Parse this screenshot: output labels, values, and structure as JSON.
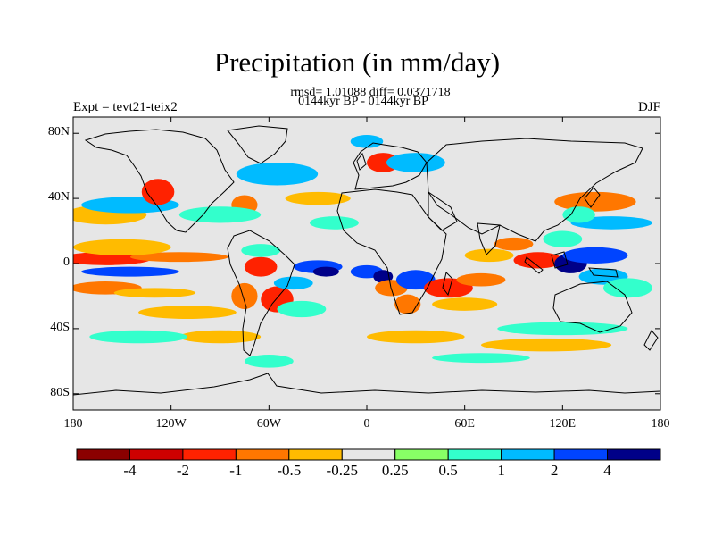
{
  "title": "Precipitation (in mm/day)",
  "stats_line": "rmsd= 1.01088 diff= 0.0371718",
  "period_line": "0144kyr BP - 0144kyr BP",
  "experiment_label": "Expt = tevt21-teix2",
  "season_label": "DJF",
  "map": {
    "projection": "cylindrical-equidistant",
    "lon_range": [
      -180,
      180
    ],
    "lat_range": [
      -90,
      90
    ],
    "background_color": "#e6e6e6",
    "coastline_color": "#000000",
    "y_ticks": [
      {
        "lat": 80,
        "label": "80N"
      },
      {
        "lat": 40,
        "label": "40N"
      },
      {
        "lat": 0,
        "label": "0"
      },
      {
        "lat": -40,
        "label": "40S"
      },
      {
        "lat": -80,
        "label": "80S"
      }
    ],
    "x_ticks": [
      {
        "lon": -180,
        "label": "180"
      },
      {
        "lon": -120,
        "label": "120W"
      },
      {
        "lon": -60,
        "label": "60W"
      },
      {
        "lon": 0,
        "label": "0"
      },
      {
        "lon": 60,
        "label": "60E"
      },
      {
        "lon": 120,
        "label": "120E"
      },
      {
        "lon": 180,
        "label": "180"
      }
    ],
    "anomaly_regions": [
      {
        "lon": -160,
        "lat": 3,
        "rlon": 28,
        "rlat": 4,
        "level": -2
      },
      {
        "lon": -115,
        "lat": 4,
        "rlon": 30,
        "rlat": 3,
        "level": -1
      },
      {
        "lon": -150,
        "lat": 10,
        "rlon": 30,
        "rlat": 5,
        "level": -0.5
      },
      {
        "lon": -145,
        "lat": -5,
        "rlon": 30,
        "rlat": 3,
        "level": 2
      },
      {
        "lon": -160,
        "lat": -15,
        "rlon": 22,
        "rlat": 4,
        "level": -1
      },
      {
        "lon": -130,
        "lat": -18,
        "rlon": 25,
        "rlat": 3,
        "level": -0.5
      },
      {
        "lon": -160,
        "lat": 30,
        "rlon": 25,
        "rlat": 6,
        "level": -0.5
      },
      {
        "lon": -145,
        "lat": 36,
        "rlon": 30,
        "rlat": 5,
        "level": 1
      },
      {
        "lon": -128,
        "lat": 44,
        "rlon": 10,
        "rlat": 8,
        "level": -2
      },
      {
        "lon": -75,
        "lat": 36,
        "rlon": 8,
        "rlat": 6,
        "level": -1
      },
      {
        "lon": -55,
        "lat": 55,
        "rlon": 25,
        "rlat": 7,
        "level": 1
      },
      {
        "lon": -30,
        "lat": 40,
        "rlon": 20,
        "rlat": 4,
        "level": -0.5
      },
      {
        "lon": -20,
        "lat": 25,
        "rlon": 15,
        "rlat": 4,
        "level": 0.5
      },
      {
        "lon": 10,
        "lat": 62,
        "rlon": 10,
        "rlat": 6,
        "level": -2
      },
      {
        "lon": 30,
        "lat": 62,
        "rlon": 18,
        "rlat": 6,
        "level": 1
      },
      {
        "lon": 0,
        "lat": 75,
        "rlon": 10,
        "rlat": 4,
        "level": 1
      },
      {
        "lon": 140,
        "lat": 38,
        "rlon": 25,
        "rlat": 6,
        "level": -1
      },
      {
        "lon": 150,
        "lat": 25,
        "rlon": 25,
        "rlat": 4,
        "level": 1
      },
      {
        "lon": 130,
        "lat": 30,
        "rlon": 10,
        "rlat": 5,
        "level": 0.5
      },
      {
        "lon": 105,
        "lat": 2,
        "rlon": 15,
        "rlat": 5,
        "level": -2
      },
      {
        "lon": 125,
        "lat": 0,
        "rlon": 10,
        "rlat": 6,
        "level": 4
      },
      {
        "lon": 140,
        "lat": 5,
        "rlon": 20,
        "rlat": 5,
        "level": 2
      },
      {
        "lon": 145,
        "lat": -8,
        "rlon": 15,
        "rlat": 5,
        "level": 1
      },
      {
        "lon": 90,
        "lat": 12,
        "rlon": 12,
        "rlat": 4,
        "level": -1
      },
      {
        "lon": 120,
        "lat": 15,
        "rlon": 12,
        "rlat": 5,
        "level": 0.5
      },
      {
        "lon": 75,
        "lat": 5,
        "rlon": 15,
        "rlat": 4,
        "level": -0.5
      },
      {
        "lon": 160,
        "lat": -15,
        "rlon": 15,
        "rlat": 6,
        "level": 0.5
      },
      {
        "lon": -65,
        "lat": -2,
        "rlon": 10,
        "rlat": 6,
        "level": -2
      },
      {
        "lon": -75,
        "lat": -20,
        "rlon": 8,
        "rlat": 8,
        "level": -1
      },
      {
        "lon": -55,
        "lat": -22,
        "rlon": 10,
        "rlat": 8,
        "level": -2
      },
      {
        "lon": -45,
        "lat": -12,
        "rlon": 12,
        "rlat": 4,
        "level": 1
      },
      {
        "lon": -30,
        "lat": -2,
        "rlon": 15,
        "rlat": 4,
        "level": 2
      },
      {
        "lon": -25,
        "lat": -5,
        "rlon": 8,
        "rlat": 3,
        "level": 4
      },
      {
        "lon": -65,
        "lat": 8,
        "rlon": 12,
        "rlat": 4,
        "level": 0.5
      },
      {
        "lon": 0,
        "lat": -5,
        "rlon": 10,
        "rlat": 4,
        "level": 2
      },
      {
        "lon": 10,
        "lat": -8,
        "rlon": 6,
        "rlat": 4,
        "level": 4
      },
      {
        "lon": 15,
        "lat": -15,
        "rlon": 10,
        "rlat": 5,
        "level": -1
      },
      {
        "lon": 30,
        "lat": -10,
        "rlon": 12,
        "rlat": 6,
        "level": 2
      },
      {
        "lon": 25,
        "lat": -25,
        "rlon": 8,
        "rlat": 6,
        "level": -1
      },
      {
        "lon": 50,
        "lat": -15,
        "rlon": 15,
        "rlat": 6,
        "level": -2
      },
      {
        "lon": 70,
        "lat": -10,
        "rlon": 15,
        "rlat": 4,
        "level": -1
      },
      {
        "lon": 60,
        "lat": -25,
        "rlon": 20,
        "rlat": 4,
        "level": -0.5
      },
      {
        "lon": -110,
        "lat": -30,
        "rlon": 30,
        "rlat": 4,
        "level": -0.5
      },
      {
        "lon": -40,
        "lat": -28,
        "rlon": 15,
        "rlat": 5,
        "level": 0.5
      },
      {
        "lon": -90,
        "lat": -45,
        "rlon": 25,
        "rlat": 4,
        "level": -0.5
      },
      {
        "lon": -140,
        "lat": -45,
        "rlon": 30,
        "rlat": 4,
        "level": 0.5
      },
      {
        "lon": 30,
        "lat": -45,
        "rlon": 30,
        "rlat": 4,
        "level": -0.5
      },
      {
        "lon": 110,
        "lat": -50,
        "rlon": 40,
        "rlat": 4,
        "level": -0.5
      },
      {
        "lon": 120,
        "lat": -40,
        "rlon": 40,
        "rlat": 4,
        "level": 0.5
      },
      {
        "lon": -60,
        "lat": -60,
        "rlon": 15,
        "rlat": 4,
        "level": 0.5
      },
      {
        "lon": 70,
        "lat": -58,
        "rlon": 30,
        "rlat": 3,
        "level": 0.5
      },
      {
        "lon": -90,
        "lat": 30,
        "rlon": 25,
        "rlat": 5,
        "level": 0.5
      }
    ]
  },
  "colorbar": {
    "colors": [
      "#8b0000",
      "#cd0000",
      "#ff2200",
      "#ff7700",
      "#ffbb00",
      "#e6e6e6",
      "#88ff66",
      "#33ffcc",
      "#00bbff",
      "#0044ff",
      "#000088"
    ],
    "labels": [
      "-4",
      "-2",
      "-1",
      "-0.5",
      "-0.25",
      "0.25",
      "0.5",
      "1",
      "2",
      "4"
    ],
    "levels": [
      -4,
      -2,
      -1,
      -0.5,
      -0.25,
      0.25,
      0.5,
      1,
      2,
      4
    ]
  }
}
